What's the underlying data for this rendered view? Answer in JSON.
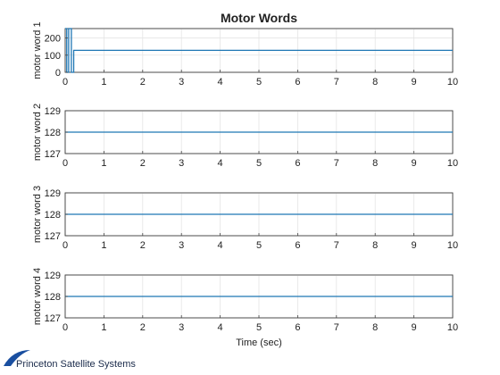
{
  "chart_data": {
    "type": "line",
    "title": "Motor Words",
    "xlabel": "Time (sec)",
    "xlim": [
      0,
      10
    ],
    "xticks": [
      0,
      1,
      2,
      3,
      4,
      5,
      6,
      7,
      8,
      9,
      10
    ],
    "grid": true,
    "line_color": "#1f77b4",
    "subplots": [
      {
        "ylabel": "motor word 1",
        "ylim": [
          0,
          255
        ],
        "yticks": [
          0,
          100,
          200
        ],
        "series": [
          {
            "x": [
              0,
              0.04,
              0.04,
              0.09,
              0.09,
              0.16,
              0.16,
              0.22,
              0.22,
              10
            ],
            "y": [
              255,
              255,
              0,
              0,
              255,
              255,
              0,
              0,
              128,
              128
            ]
          }
        ]
      },
      {
        "ylabel": "motor word 2",
        "ylim": [
          127,
          129
        ],
        "yticks": [
          127,
          128,
          129
        ],
        "series": [
          {
            "x": [
              0,
              10
            ],
            "y": [
              128,
              128
            ]
          }
        ]
      },
      {
        "ylabel": "motor word 3",
        "ylim": [
          127,
          129
        ],
        "yticks": [
          127,
          128,
          129
        ],
        "series": [
          {
            "x": [
              0,
              10
            ],
            "y": [
              128,
              128
            ]
          }
        ]
      },
      {
        "ylabel": "motor word 4",
        "ylim": [
          127,
          129
        ],
        "yticks": [
          127,
          128,
          129
        ],
        "series": [
          {
            "x": [
              0,
              10
            ],
            "y": [
              128,
              128
            ]
          }
        ]
      }
    ]
  },
  "footer": {
    "company": "Princeton Satellite Systems",
    "logo_color": "#1a4fa0"
  }
}
